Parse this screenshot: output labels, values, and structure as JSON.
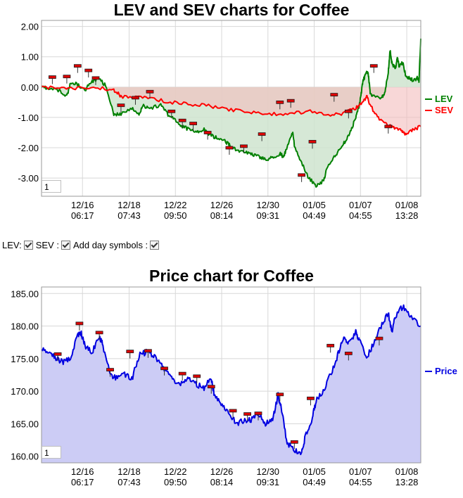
{
  "chart_data": [
    {
      "type": "line",
      "title": "LEV and SEV charts for Coffee",
      "ylim": [
        -3.6,
        2.2
      ],
      "yticks": [
        "2.00",
        "1.00",
        "0.00",
        "-1.00",
        "-2.00",
        "-3.00"
      ],
      "ytick_values": [
        2,
        1,
        0,
        -1,
        -2,
        -3
      ],
      "xticks": [
        {
          "date": "12/16",
          "time": "06:17",
          "pos": 0.108
        },
        {
          "date": "12/18",
          "time": "07:43",
          "pos": 0.231
        },
        {
          "date": "12/22",
          "time": "09:50",
          "pos": 0.353
        },
        {
          "date": "12/26",
          "time": "08:14",
          "pos": 0.475
        },
        {
          "date": "12/30",
          "time": "09:31",
          "pos": 0.597
        },
        {
          "date": "01/05",
          "time": "04:49",
          "pos": 0.719
        },
        {
          "date": "01/07",
          "time": "04:55",
          "pos": 0.841
        },
        {
          "date": "01/08",
          "time": "13:28",
          "pos": 0.963
        }
      ],
      "grid": true,
      "legend": "right",
      "series": [
        {
          "name": "LEV",
          "color": "#008000",
          "points": [
            [
              0,
              0.0
            ],
            [
              0.02,
              -0.05
            ],
            [
              0.05,
              -0.1
            ],
            [
              0.07,
              -0.3
            ],
            [
              0.08,
              0.1
            ],
            [
              0.1,
              0.1
            ],
            [
              0.12,
              -0.1
            ],
            [
              0.14,
              0.2
            ],
            [
              0.16,
              0.3
            ],
            [
              0.18,
              0.0
            ],
            [
              0.2,
              -0.9
            ],
            [
              0.22,
              -0.9
            ],
            [
              0.25,
              -0.7
            ],
            [
              0.27,
              -0.9
            ],
            [
              0.28,
              -0.6
            ],
            [
              0.3,
              -0.7
            ],
            [
              0.33,
              -0.6
            ],
            [
              0.35,
              -0.9
            ],
            [
              0.37,
              -1.1
            ],
            [
              0.39,
              -1.3
            ],
            [
              0.41,
              -1.4
            ],
            [
              0.43,
              -1.5
            ],
            [
              0.45,
              -1.4
            ],
            [
              0.47,
              -1.6
            ],
            [
              0.49,
              -1.7
            ],
            [
              0.51,
              -1.8
            ],
            [
              0.52,
              -1.9
            ],
            [
              0.54,
              -2.1
            ],
            [
              0.56,
              -2.1
            ],
            [
              0.58,
              -2.2
            ],
            [
              0.6,
              -2.3
            ],
            [
              0.62,
              -2.4
            ],
            [
              0.64,
              -2.3
            ],
            [
              0.66,
              -2.2
            ],
            [
              0.67,
              -2.3
            ],
            [
              0.68,
              -2.0
            ],
            [
              0.695,
              -1.5
            ],
            [
              0.7,
              -1.9
            ],
            [
              0.72,
              -2.5
            ],
            [
              0.74,
              -3.0
            ],
            [
              0.76,
              -3.25
            ],
            [
              0.78,
              -3.1
            ],
            [
              0.79,
              -2.7
            ],
            [
              0.81,
              -2.3
            ],
            [
              0.83,
              -2.0
            ],
            [
              0.84,
              -1.8
            ],
            [
              0.855,
              -1.5
            ],
            [
              0.87,
              -1.0
            ],
            [
              0.88,
              -0.6
            ],
            [
              0.885,
              -0.2
            ],
            [
              0.89,
              0.2
            ],
            [
              0.9,
              0.5
            ],
            [
              0.905,
              0.4
            ],
            [
              0.91,
              -0.2
            ],
            [
              0.92,
              -0.3
            ],
            [
              0.94,
              -0.4
            ],
            [
              0.95,
              -0.2
            ],
            [
              0.96,
              0.5
            ],
            [
              0.965,
              1.2
            ],
            [
              0.97,
              0.8
            ],
            [
              0.98,
              0.6
            ],
            [
              0.985,
              1.0
            ],
            [
              0.99,
              0.7
            ],
            [
              1.0,
              0.8
            ],
            [
              1.01,
              0.3
            ],
            [
              1.02,
              0.3
            ],
            [
              1.03,
              0.2
            ],
            [
              1.04,
              0.3
            ],
            [
              1.045,
              0.2
            ],
            [
              1.05,
              1.6
            ]
          ]
        },
        {
          "name": "SEV",
          "color": "#ff0000",
          "points": [
            [
              0,
              0.0
            ],
            [
              0.05,
              -0.05
            ],
            [
              0.1,
              -0.05
            ],
            [
              0.15,
              0.0
            ],
            [
              0.2,
              -0.1
            ],
            [
              0.22,
              -0.3
            ],
            [
              0.26,
              -0.35
            ],
            [
              0.3,
              -0.35
            ],
            [
              0.35,
              -0.5
            ],
            [
              0.4,
              -0.55
            ],
            [
              0.45,
              -0.6
            ],
            [
              0.5,
              -0.7
            ],
            [
              0.55,
              -0.8
            ],
            [
              0.6,
              -0.85
            ],
            [
              0.65,
              -0.9
            ],
            [
              0.7,
              -0.85
            ],
            [
              0.75,
              -0.8
            ],
            [
              0.8,
              -0.95
            ],
            [
              0.84,
              -0.85
            ],
            [
              0.87,
              -0.7
            ],
            [
              0.89,
              -0.5
            ],
            [
              0.9,
              -0.3
            ],
            [
              0.91,
              -0.6
            ],
            [
              0.93,
              -1.0
            ],
            [
              0.95,
              -1.2
            ],
            [
              0.97,
              -1.3
            ],
            [
              0.99,
              -1.4
            ],
            [
              1.0,
              -1.5
            ],
            [
              1.01,
              -1.55
            ],
            [
              1.03,
              -1.4
            ],
            [
              1.05,
              -1.3
            ]
          ]
        }
      ],
      "day_markers": [
        [
          0.03,
          0.33
        ],
        [
          0.07,
          0.35
        ],
        [
          0.1,
          0.7
        ],
        [
          0.13,
          0.55
        ],
        [
          0.15,
          0.3
        ],
        [
          0.22,
          -0.6
        ],
        [
          0.26,
          -0.35
        ],
        [
          0.3,
          -0.15
        ],
        [
          0.36,
          -0.8
        ],
        [
          0.39,
          -1.1
        ],
        [
          0.42,
          -1.2
        ],
        [
          0.46,
          -1.5
        ],
        [
          0.52,
          -2.0
        ],
        [
          0.56,
          -1.95
        ],
        [
          0.61,
          -1.55
        ],
        [
          0.66,
          -0.5
        ],
        [
          0.69,
          -0.45
        ],
        [
          0.72,
          -2.9
        ],
        [
          0.75,
          -1.8
        ],
        [
          0.81,
          -0.25
        ],
        [
          0.85,
          -0.8
        ],
        [
          0.92,
          0.7
        ],
        [
          0.96,
          -1.3
        ]
      ]
    },
    {
      "type": "area",
      "title": "Price chart for Coffee",
      "ylim": [
        159,
        186
      ],
      "yticks": [
        "185.00",
        "180.00",
        "175.00",
        "170.00",
        "165.00",
        "160.00"
      ],
      "ytick_values": [
        185,
        180,
        175,
        170,
        165,
        160
      ],
      "xticks": [
        {
          "date": "12/16",
          "time": "06:17",
          "pos": 0.108
        },
        {
          "date": "12/18",
          "time": "07:43",
          "pos": 0.231
        },
        {
          "date": "12/22",
          "time": "09:50",
          "pos": 0.353
        },
        {
          "date": "12/26",
          "time": "08:14",
          "pos": 0.475
        },
        {
          "date": "12/30",
          "time": "09:31",
          "pos": 0.597
        },
        {
          "date": "01/05",
          "time": "04:49",
          "pos": 0.719
        },
        {
          "date": "01/07",
          "time": "04:55",
          "pos": 0.841
        },
        {
          "date": "01/08",
          "time": "13:28",
          "pos": 0.963
        }
      ],
      "grid": true,
      "legend": "right",
      "series": [
        {
          "name": "Price",
          "color": "#0000e0",
          "points": [
            [
              0,
              176.5
            ],
            [
              0.02,
              175.8
            ],
            [
              0.04,
              175.0
            ],
            [
              0.06,
              174.5
            ],
            [
              0.08,
              175.0
            ],
            [
              0.1,
              178.5
            ],
            [
              0.11,
              178.8
            ],
            [
              0.12,
              177.0
            ],
            [
              0.14,
              176.0
            ],
            [
              0.16,
              178.5
            ],
            [
              0.17,
              177.0
            ],
            [
              0.19,
              172.5
            ],
            [
              0.21,
              172.0
            ],
            [
              0.23,
              172.5
            ],
            [
              0.25,
              171.8
            ],
            [
              0.27,
              175.5
            ],
            [
              0.29,
              176.0
            ],
            [
              0.31,
              175.5
            ],
            [
              0.33,
              174.0
            ],
            [
              0.35,
              173.0
            ],
            [
              0.37,
              171.5
            ],
            [
              0.39,
              171.0
            ],
            [
              0.41,
              172.0
            ],
            [
              0.43,
              171.0
            ],
            [
              0.45,
              170.5
            ],
            [
              0.47,
              172.0
            ],
            [
              0.48,
              169.0
            ],
            [
              0.5,
              168.0
            ],
            [
              0.52,
              166.5
            ],
            [
              0.54,
              165.0
            ],
            [
              0.56,
              165.5
            ],
            [
              0.58,
              165.5
            ],
            [
              0.6,
              166.5
            ],
            [
              0.62,
              165.0
            ],
            [
              0.64,
              165.5
            ],
            [
              0.655,
              169.5
            ],
            [
              0.665,
              167.0
            ],
            [
              0.68,
              162.0
            ],
            [
              0.7,
              161.0
            ],
            [
              0.72,
              160.5
            ],
            [
              0.73,
              163.0
            ],
            [
              0.75,
              166.0
            ],
            [
              0.76,
              168.5
            ],
            [
              0.78,
              170.0
            ],
            [
              0.8,
              172.5
            ],
            [
              0.82,
              175.5
            ],
            [
              0.835,
              178.0
            ],
            [
              0.85,
              177.5
            ],
            [
              0.87,
              179.0
            ],
            [
              0.88,
              178.0
            ],
            [
              0.9,
              175.0
            ],
            [
              0.92,
              177.5
            ],
            [
              0.94,
              180.0
            ],
            [
              0.96,
              182.0
            ],
            [
              0.97,
              179.0
            ],
            [
              0.98,
              181.5
            ],
            [
              1.0,
              183.0
            ],
            [
              1.02,
              181.5
            ],
            [
              1.05,
              180.0
            ]
          ]
        }
      ],
      "day_markers": [
        [
          0.045,
          175.7
        ],
        [
          0.105,
          180.4
        ],
        [
          0.16,
          179.0
        ],
        [
          0.19,
          173.3
        ],
        [
          0.245,
          176.1
        ],
        [
          0.295,
          176.2
        ],
        [
          0.34,
          173.5
        ],
        [
          0.39,
          172.7
        ],
        [
          0.43,
          172.3
        ],
        [
          0.47,
          170.7
        ],
        [
          0.53,
          167.0
        ],
        [
          0.57,
          166.5
        ],
        [
          0.6,
          166.6
        ],
        [
          0.66,
          169.5
        ],
        [
          0.7,
          162.2
        ],
        [
          0.745,
          168.9
        ],
        [
          0.8,
          177.0
        ],
        [
          0.85,
          175.8
        ],
        [
          0.935,
          178.1
        ]
      ]
    }
  ],
  "controls": {
    "lev_label": "LEV:",
    "sev_label": "SEV :",
    "day_label": "Add day symbols :"
  },
  "zoom_value_1": "1",
  "zoom_value_2": "1"
}
